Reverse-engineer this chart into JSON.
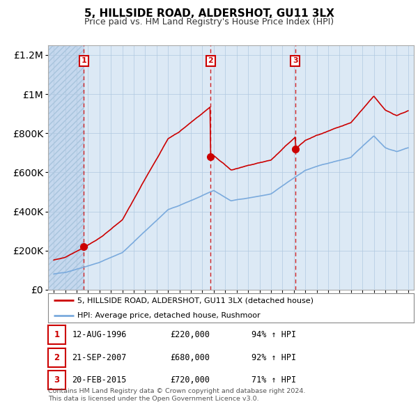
{
  "title": "5, HILLSIDE ROAD, ALDERSHOT, GU11 3LX",
  "subtitle": "Price paid vs. HM Land Registry's House Price Index (HPI)",
  "legend_line1": "5, HILLSIDE ROAD, ALDERSHOT, GU11 3LX (detached house)",
  "legend_line2": "HPI: Average price, detached house, Rushmoor",
  "footnote1": "Contains HM Land Registry data © Crown copyright and database right 2024.",
  "footnote2": "This data is licensed under the Open Government Licence v3.0.",
  "sales": [
    {
      "label": "1",
      "date": "12-AUG-1996",
      "price": 220000,
      "year": 1996.62
    },
    {
      "label": "2",
      "date": "21-SEP-2007",
      "price": 680000,
      "year": 2007.72
    },
    {
      "label": "3",
      "date": "20-FEB-2015",
      "price": 720000,
      "year": 2015.13
    }
  ],
  "table_rows": [
    [
      "1",
      "12-AUG-1996",
      "£220,000",
      "94% ↑ HPI"
    ],
    [
      "2",
      "21-SEP-2007",
      "£680,000",
      "92% ↑ HPI"
    ],
    [
      "3",
      "20-FEB-2015",
      "£720,000",
      "71% ↑ HPI"
    ]
  ],
  "ylim": [
    0,
    1250000
  ],
  "xlim": [
    1993.5,
    2025.5
  ],
  "background_color": "#dce9f5",
  "hatch_color": "#c5d8ee",
  "grid_color": "#b0c8e0",
  "red_color": "#cc0000",
  "blue_color": "#7aaadd",
  "sale_dot_color": "#cc0000"
}
